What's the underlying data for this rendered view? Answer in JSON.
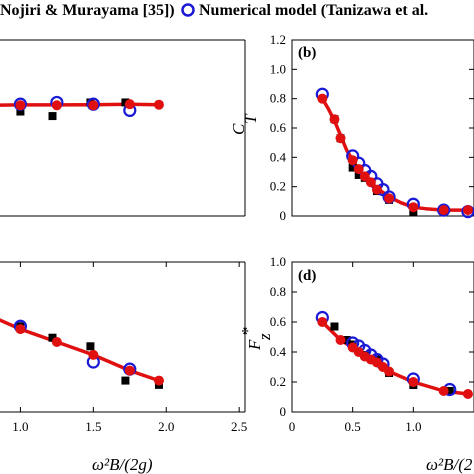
{
  "legend": {
    "exp_label": "Nojiri & Murayama [35])",
    "num_label": "Numerical model (Tanizawa et al."
  },
  "colors": {
    "experiment": "#000000",
    "numerical": "#1a1ad6",
    "fit": "#e01010"
  },
  "chart_data": [
    {
      "panel": "a",
      "type": "scatter",
      "tag": "",
      "ylabel": "",
      "xlabel": "",
      "xlim": [
        0,
        2.5
      ],
      "ylim": [
        0,
        1.2
      ],
      "xticks": [],
      "yticks": [],
      "series": [
        {
          "kind": "experiment",
          "x": [
            0.8,
            1.0,
            1.22,
            1.48,
            1.72
          ],
          "y": [
            0.975,
            0.92,
            0.88,
            1.0,
            1.0
          ]
        },
        {
          "kind": "numerical",
          "x": [
            0.8,
            1.0,
            1.25,
            1.5,
            1.75
          ],
          "y": [
            0.985,
            0.985,
            1.0,
            0.985,
            0.93
          ]
        },
        {
          "kind": "fit_points",
          "x": [
            0.8,
            1.0,
            1.25,
            1.5,
            1.75,
            1.95
          ],
          "y": [
            0.975,
            0.975,
            0.975,
            0.975,
            0.985,
            0.98
          ]
        },
        {
          "kind": "fit_curve",
          "x": [
            0.8,
            1.0,
            1.25,
            1.5,
            1.75,
            1.95
          ],
          "y": [
            0.975,
            0.978,
            0.978,
            0.98,
            0.985,
            0.98
          ]
        }
      ]
    },
    {
      "panel": "b",
      "type": "scatter",
      "tag": "(b)",
      "ylabel": "C",
      "ylabel_sub": "T",
      "xlabel": "",
      "xlim": [
        0,
        1.5
      ],
      "ylim": [
        0,
        1.2
      ],
      "xticks": [],
      "yticks": [
        "0",
        "0.2",
        "0.4",
        "0.6",
        "0.8",
        "1.0",
        "1.2"
      ],
      "series": [
        {
          "kind": "experiment",
          "x": [
            0.35,
            0.4,
            0.5,
            0.55,
            0.6,
            0.7,
            0.8,
            1.0
          ],
          "y": [
            0.66,
            0.53,
            0.33,
            0.28,
            0.26,
            0.17,
            0.11,
            0.03
          ]
        },
        {
          "kind": "numerical",
          "x": [
            0.25,
            0.5,
            0.55,
            0.6,
            0.65,
            0.7,
            0.75,
            0.8,
            1.0,
            1.25,
            1.45
          ],
          "y": [
            0.83,
            0.41,
            0.36,
            0.31,
            0.27,
            0.22,
            0.18,
            0.13,
            0.08,
            0.04,
            0.03
          ]
        },
        {
          "kind": "fit_points",
          "x": [
            0.25,
            0.35,
            0.4,
            0.5,
            0.55,
            0.6,
            0.65,
            0.7,
            0.8,
            1.0,
            1.25,
            1.45
          ],
          "y": [
            0.8,
            0.66,
            0.53,
            0.38,
            0.32,
            0.27,
            0.23,
            0.18,
            0.12,
            0.06,
            0.04,
            0.04
          ]
        },
        {
          "kind": "fit_curve",
          "x": [
            0.25,
            0.3,
            0.35,
            0.4,
            0.45,
            0.5,
            0.55,
            0.6,
            0.65,
            0.7,
            0.8,
            0.9,
            1.0,
            1.1,
            1.25,
            1.35,
            1.45
          ],
          "y": [
            0.8,
            0.73,
            0.65,
            0.55,
            0.45,
            0.38,
            0.32,
            0.27,
            0.23,
            0.19,
            0.13,
            0.09,
            0.06,
            0.05,
            0.04,
            0.04,
            0.04
          ]
        }
      ]
    },
    {
      "panel": "c",
      "type": "scatter",
      "tag": "",
      "ylabel": "",
      "xlabel": "ω²B/(2g)",
      "xlim": [
        0,
        2.5
      ],
      "ylim": [
        0,
        1.2
      ],
      "xticks": [
        "1.0",
        "1.5",
        "2.0",
        "2.5"
      ],
      "yticks": [],
      "series": [
        {
          "kind": "experiment",
          "x": [
            0.8,
            1.0,
            1.22,
            1.48,
            1.72,
            1.95
          ],
          "y": [
            0.96,
            0.85,
            0.77,
            0.71,
            0.47,
            0.44
          ]
        },
        {
          "kind": "numerical",
          "x": [
            1.0,
            1.5,
            1.75
          ],
          "y": [
            0.85,
            0.6,
            0.55
          ]
        },
        {
          "kind": "fit_points",
          "x": [
            0.8,
            1.0,
            1.25,
            1.5,
            1.75,
            1.95
          ],
          "y": [
            0.92,
            0.83,
            0.74,
            0.65,
            0.54,
            0.47
          ]
        },
        {
          "kind": "fit_curve",
          "x": [
            0.8,
            1.0,
            1.25,
            1.5,
            1.75,
            1.95
          ],
          "y": [
            0.92,
            0.83,
            0.74,
            0.65,
            0.54,
            0.47
          ]
        }
      ]
    },
    {
      "panel": "d",
      "type": "scatter",
      "tag": "(d)",
      "ylabel": "F",
      "ylabel_sub": "z",
      "ylabel_sup": "*",
      "xlabel": "ω²B/(2",
      "xlim": [
        0,
        1.5
      ],
      "ylim": [
        0,
        1.0
      ],
      "xticks": [
        "0",
        "0.5",
        "1.0"
      ],
      "yticks": [
        "0",
        "0.2",
        "0.4",
        "0.6",
        "0.8",
        "1.0"
      ],
      "series": [
        {
          "kind": "experiment",
          "x": [
            0.35,
            0.45,
            0.5,
            0.6,
            0.7,
            0.8,
            1.0,
            1.3
          ],
          "y": [
            0.57,
            0.48,
            0.45,
            0.38,
            0.35,
            0.26,
            0.18,
            0.14
          ]
        },
        {
          "kind": "numerical",
          "x": [
            0.25,
            0.5,
            0.55,
            0.6,
            0.65,
            0.7,
            0.75,
            1.0,
            1.3
          ],
          "y": [
            0.63,
            0.46,
            0.44,
            0.41,
            0.38,
            0.35,
            0.32,
            0.22,
            0.15
          ]
        },
        {
          "kind": "fit_points",
          "x": [
            0.25,
            0.4,
            0.5,
            0.55,
            0.6,
            0.65,
            0.7,
            0.75,
            0.8,
            1.0,
            1.25,
            1.45
          ],
          "y": [
            0.6,
            0.48,
            0.43,
            0.4,
            0.37,
            0.35,
            0.33,
            0.3,
            0.27,
            0.2,
            0.14,
            0.12
          ]
        },
        {
          "kind": "fit_curve",
          "x": [
            0.25,
            0.4,
            0.5,
            0.55,
            0.6,
            0.65,
            0.7,
            0.75,
            0.8,
            1.0,
            1.25,
            1.45
          ],
          "y": [
            0.6,
            0.48,
            0.43,
            0.4,
            0.37,
            0.35,
            0.33,
            0.3,
            0.27,
            0.2,
            0.14,
            0.12
          ]
        }
      ]
    }
  ]
}
